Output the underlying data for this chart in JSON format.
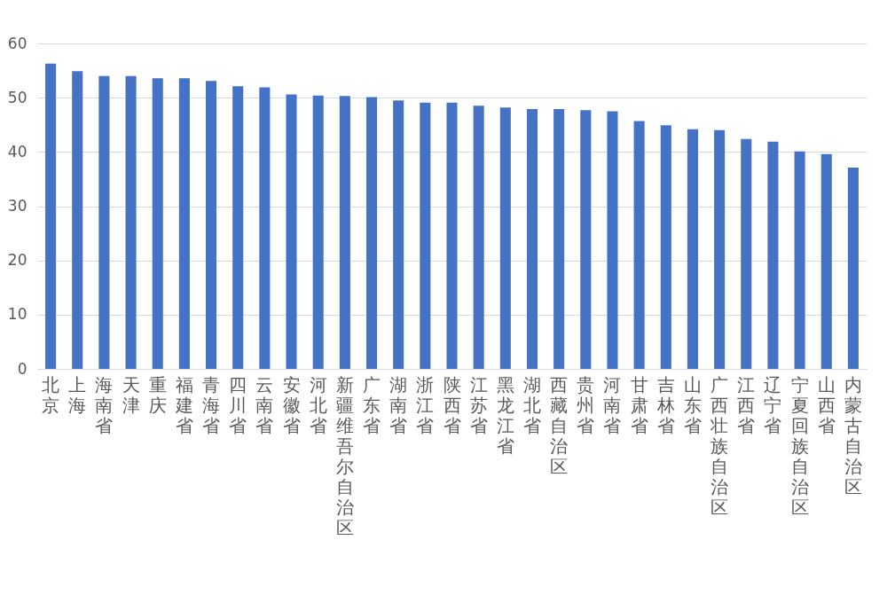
{
  "chart_data": {
    "type": "bar",
    "categories": [
      "北京",
      "上海",
      "海南省",
      "天津",
      "重庆",
      "福建省",
      "青海省",
      "四川省",
      "云南省",
      "安徽省",
      "河北省",
      "新疆维吾尔自治区",
      "广东省",
      "湖南省",
      "浙江省",
      "陕西省",
      "江苏省",
      "黑龙江省",
      "湖北省",
      "西藏自治区",
      "贵州省",
      "河南省",
      "甘肃省",
      "吉林省",
      "山东省",
      "广西壮族自治区",
      "江西省",
      "辽宁省",
      "宁夏回族自治区",
      "山西省",
      "内蒙古自治区"
    ],
    "values": [
      56.3,
      54.9,
      54.0,
      54.0,
      53.6,
      53.6,
      53.1,
      52.1,
      51.9,
      50.6,
      50.4,
      50.3,
      50.1,
      49.5,
      49.1,
      49.1,
      48.5,
      48.2,
      47.9,
      47.9,
      47.7,
      47.5,
      45.7,
      44.9,
      44.2,
      44.0,
      42.4,
      41.9,
      40.1,
      39.6,
      37.1
    ],
    "color": "#4472c4",
    "ylim": [
      0,
      60
    ],
    "yticks": [
      0,
      10,
      20,
      30,
      40,
      50,
      60
    ],
    "grid": "y"
  }
}
